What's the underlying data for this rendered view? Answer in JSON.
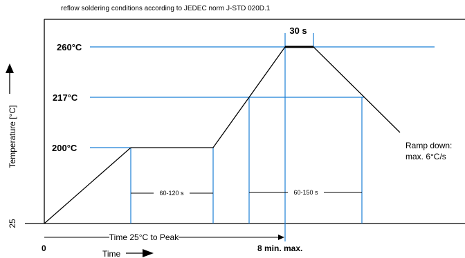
{
  "header": {
    "caption": "reflow soldering conditions according to JEDEC norm J-STD 020D.1"
  },
  "axes": {
    "y_label": "Temperature [°C]",
    "x_label": "Time",
    "y_axis_value": "25",
    "x_origin_value": "0"
  },
  "levels": {
    "t260": "260°C",
    "t217": "217°C",
    "t200": "200°C"
  },
  "annotations": {
    "peak_hold": "30 s",
    "preheat_duration": "60-120 s",
    "above_liquidus_duration": "60-150 s",
    "ramp_down_line1": "Ramp down:",
    "ramp_down_line2": "max. 6°C/s",
    "time_to_peak": "Time 25°C to Peak",
    "max_time": "8 min. max."
  },
  "colors": {
    "guide_blue": "#1a7fd6",
    "curve": "#000000"
  }
}
